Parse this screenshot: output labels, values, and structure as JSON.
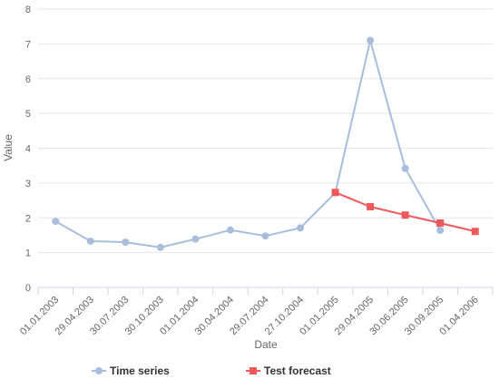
{
  "chart_data": {
    "type": "line",
    "title": "",
    "xlabel": "Date",
    "ylabel": "Value",
    "ylim": [
      0,
      8
    ],
    "y_ticks": [
      "0",
      "1",
      "2",
      "3",
      "4",
      "5",
      "6",
      "7",
      "8"
    ],
    "x_ticks": [
      "01.01.2003",
      "29.04.2003",
      "30.07.2003",
      "30.10.2003",
      "01.01.2004",
      "30.04.2004",
      "29.07.2004",
      "27.10.2004",
      "01.01.2005",
      "29.04.2005",
      "30.06.2005",
      "30.09.2005",
      "01.04.2006"
    ],
    "grid": true,
    "legend_position": "bottom",
    "series": [
      {
        "name": "Time series",
        "color": "#a9bedc",
        "marker": "circle",
        "points": [
          {
            "x": "01.01.2003",
            "y": 1.9
          },
          {
            "x": "29.04.2003",
            "y": 1.33
          },
          {
            "x": "30.07.2003",
            "y": 1.3
          },
          {
            "x": "30.10.2003",
            "y": 1.15
          },
          {
            "x": "01.01.2004",
            "y": 1.39
          },
          {
            "x": "30.04.2004",
            "y": 1.65
          },
          {
            "x": "29.07.2004",
            "y": 1.48
          },
          {
            "x": "27.10.2004",
            "y": 1.71
          },
          {
            "x": "01.01.2005",
            "y": 2.72
          },
          {
            "x": "29.04.2005",
            "y": 7.1
          },
          {
            "x": "30.06.2005",
            "y": 3.42
          },
          {
            "x": "30.09.2005",
            "y": 1.64
          }
        ]
      },
      {
        "name": "Test forecast",
        "color": "#f0585b",
        "marker": "square",
        "points": [
          {
            "x": "01.01.2005",
            "y": 2.73
          },
          {
            "x": "29.04.2005",
            "y": 2.32
          },
          {
            "x": "30.06.2005",
            "y": 2.08
          },
          {
            "x": "30.09.2005",
            "y": 1.85
          },
          {
            "x": "01.04.2006",
            "y": 1.61
          }
        ]
      }
    ]
  }
}
